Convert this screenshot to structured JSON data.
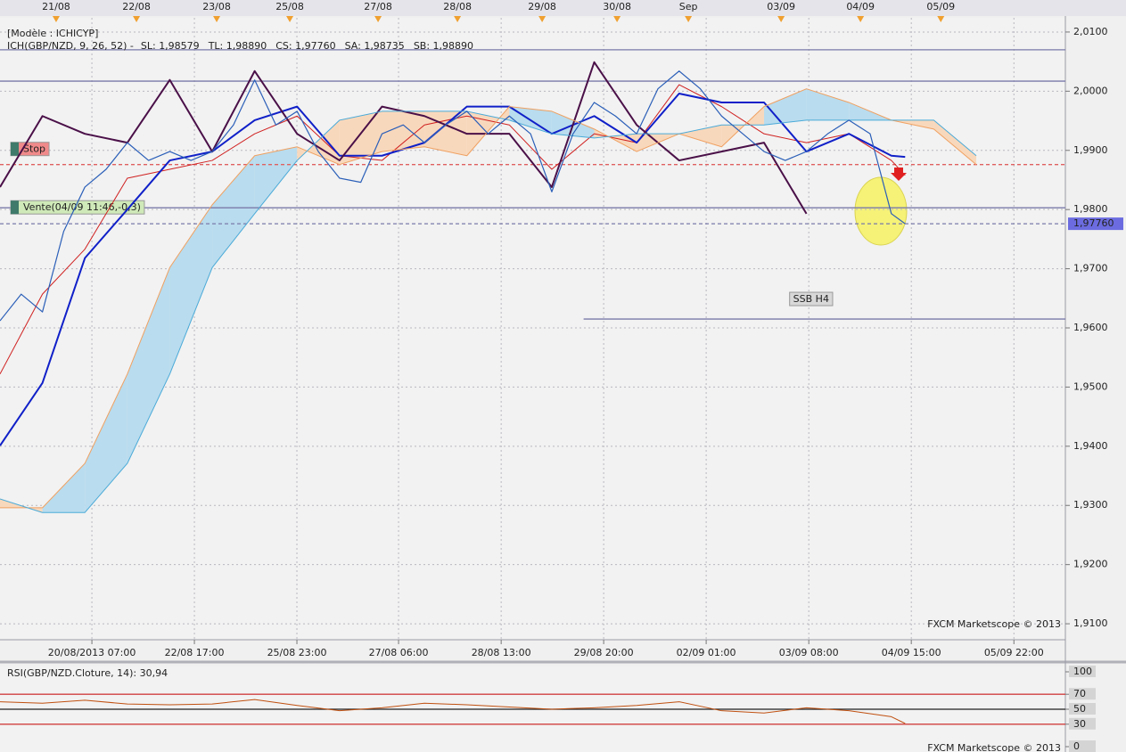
{
  "chart_data": [
    {
      "type": "line",
      "model_label": "[Modèle : ICHICYP]",
      "indicator_label": "ICH(GBP/NZD, 9, 26, 52) -",
      "watermark": "FXCM Marketscope © 2013",
      "xlim": [
        0,
        100.4
      ],
      "ylim": [
        1.9073,
        2.0124
      ],
      "grid": true,
      "yticks": [
        {
          "value": 2.01,
          "label": "2,0100"
        },
        {
          "value": 2.0,
          "label": "2,0000"
        },
        {
          "value": 1.99,
          "label": "1,9900"
        },
        {
          "value": 1.98,
          "label": "1,9800"
        },
        {
          "value": 1.97,
          "label": "1,9700"
        },
        {
          "value": 1.96,
          "label": "1,9600"
        },
        {
          "value": 1.95,
          "label": "1,9500"
        },
        {
          "value": 1.94,
          "label": "1,9400"
        },
        {
          "value": 1.93,
          "label": "1,9300"
        },
        {
          "value": 1.92,
          "label": "1,9200"
        },
        {
          "value": 1.91,
          "label": "1,9100"
        }
      ],
      "xticks_top": [
        {
          "value": 5.29,
          "label": "21/08"
        },
        {
          "value": 12.86,
          "label": "22/08"
        },
        {
          "value": 20.42,
          "label": "23/08"
        },
        {
          "value": 27.31,
          "label": "25/08"
        },
        {
          "value": 35.63,
          "label": "27/08"
        },
        {
          "value": 43.11,
          "label": "28/08"
        },
        {
          "value": 51.09,
          "label": "29/08"
        },
        {
          "value": 58.15,
          "label": "30/08"
        },
        {
          "value": 64.87,
          "label": "Sep"
        },
        {
          "value": 73.61,
          "label": "03/09"
        },
        {
          "value": 81.09,
          "label": "04/09"
        },
        {
          "value": 88.66,
          "label": "05/09"
        }
      ],
      "xticks": [
        {
          "value": 8.66,
          "label": "20/08/2013 07:00"
        },
        {
          "value": 18.32,
          "label": "22/08 17:00"
        },
        {
          "value": 27.98,
          "label": "25/08 23:00"
        },
        {
          "value": 37.56,
          "label": "27/08 06:00"
        },
        {
          "value": 47.23,
          "label": "28/08 13:00"
        },
        {
          "value": 56.89,
          "label": "29/08 20:00"
        },
        {
          "value": 66.55,
          "label": "02/09 01:00"
        },
        {
          "value": 76.22,
          "label": "03/09 08:00"
        },
        {
          "value": 85.88,
          "label": "04/09 15:00"
        },
        {
          "value": 95.55,
          "label": "05/09 22:00"
        }
      ],
      "cloud_colors": {
        "up": "#b9dcee",
        "down": "#f8d8bc"
      },
      "hlines": [
        {
          "value": 2.007,
          "color": "#7a7aaa"
        },
        {
          "value": 2.0017,
          "color": "#7a7aaa"
        },
        {
          "value": 1.9876,
          "color": "#e06060",
          "dash": true,
          "label": "Stop",
          "label_color": "#f08a8a"
        },
        {
          "value": 1.9803,
          "color": "#7a7aaa",
          "label": "Vente(04/09 11:46,-0,3)",
          "label_color": "#cfe9b8"
        },
        {
          "value": 1.9776,
          "color": "#7a7aaa",
          "dash": true
        },
        {
          "value": 1.9615,
          "color": "#7a7aaa",
          "xrange": [
            55,
            100.4
          ],
          "label": "SSB H4",
          "label_color": "#d8d8d8"
        }
      ],
      "last_label": {
        "value": 1.9776,
        "label": "1,97760"
      },
      "series": [
        {
          "name": "SL: 1,98579",
          "color": "#d02020",
          "width": 1,
          "x": [
            0,
            4,
            8,
            12,
            16,
            20,
            24,
            28,
            32,
            36,
            40,
            44,
            48,
            52,
            56,
            60,
            64,
            68,
            72,
            76,
            80,
            84,
            85.3
          ],
          "values": [
            1.9522,
            1.9657,
            1.9733,
            1.9853,
            1.9868,
            1.9883,
            1.9928,
            1.9958,
            1.9891,
            1.9883,
            1.9943,
            1.9958,
            1.9943,
            1.9868,
            1.9928,
            1.9913,
            2.0011,
            1.9974,
            1.9928,
            1.9913,
            1.9928,
            1.9883,
            1.9858
          ]
        },
        {
          "name": "TL: 1,98890",
          "color": "#1020c8",
          "width": 2,
          "x": [
            0,
            4,
            8,
            12,
            16,
            20,
            24,
            28,
            32,
            36,
            40,
            44,
            48,
            52,
            56,
            60,
            64,
            68,
            72,
            76,
            80,
            84,
            85.3
          ],
          "values": [
            1.9401,
            1.9507,
            1.9718,
            1.98,
            1.9883,
            1.9898,
            1.9951,
            1.9974,
            1.9891,
            1.9891,
            1.9913,
            1.9974,
            1.9974,
            1.9928,
            1.9958,
            1.9913,
            1.9996,
            1.9981,
            1.9981,
            1.9898,
            1.9928,
            1.9891,
            1.9889
          ]
        },
        {
          "name": "CS: 1,97760",
          "color": "#4a1048",
          "width": 2,
          "x": [
            0,
            4,
            8,
            12,
            16,
            20,
            24,
            28,
            32,
            36,
            40,
            44,
            48,
            52,
            56,
            60,
            64,
            68,
            72,
            76
          ],
          "values": [
            1.9838,
            1.9958,
            1.9928,
            1.9913,
            2.0019,
            1.9898,
            2.0034,
            1.9928,
            1.9883,
            1.9974,
            1.9958,
            1.9928,
            1.9928,
            1.9838,
            2.0049,
            1.9943,
            1.9883,
            1.9898,
            1.9913,
            1.9793
          ]
        },
        {
          "name": "SA: 1,98735",
          "color": "#f0a060",
          "width": 1,
          "x": [
            0,
            4,
            8,
            12,
            16,
            20,
            24,
            28,
            32,
            36,
            40,
            44,
            48,
            52,
            56,
            60,
            64,
            68,
            72,
            76,
            80,
            84,
            88,
            92
          ],
          "values": [
            1.9296,
            1.9296,
            1.9371,
            1.9522,
            1.9702,
            1.9808,
            1.9891,
            1.9906,
            1.9876,
            1.9898,
            1.9906,
            1.9891,
            1.9974,
            1.9966,
            1.9936,
            1.9898,
            1.9928,
            1.9906,
            1.9974,
            2.0004,
            1.9981,
            1.9951,
            1.9936,
            1.9876
          ]
        },
        {
          "name": "SB: 1,98890",
          "color": "#4aaad8",
          "width": 1,
          "x": [
            0,
            4,
            8,
            12,
            16,
            20,
            24,
            28,
            32,
            36,
            40,
            44,
            48,
            52,
            56,
            60,
            64,
            68,
            72,
            76,
            80,
            84,
            88,
            92
          ],
          "values": [
            1.9311,
            1.9288,
            1.9288,
            1.9371,
            1.9522,
            1.9702,
            1.9793,
            1.9883,
            1.9951,
            1.9966,
            1.9966,
            1.9966,
            1.9951,
            1.9928,
            1.9921,
            1.9928,
            1.9928,
            1.9943,
            1.9943,
            1.9951,
            1.9951,
            1.9951,
            1.9951,
            1.9891
          ]
        },
        {
          "color": "#2b5fb8",
          "width": 1.2,
          "x": [
            0,
            2,
            4,
            6,
            8,
            10,
            12,
            14,
            16,
            18,
            20,
            22,
            24,
            26,
            28,
            30,
            32,
            34,
            36,
            38,
            40,
            42,
            44,
            46,
            48,
            50,
            52,
            54,
            56,
            58,
            60,
            62,
            64,
            66,
            68,
            70,
            72,
            74,
            76,
            78,
            80,
            82,
            84,
            85.3
          ],
          "values": [
            1.9612,
            1.9657,
            1.9627,
            1.9763,
            1.9838,
            1.9868,
            1.9913,
            1.9883,
            1.9898,
            1.9883,
            1.9898,
            1.9943,
            2.0019,
            1.9943,
            1.9966,
            1.9898,
            1.9853,
            1.9846,
            1.9928,
            1.9943,
            1.9913,
            1.9943,
            1.9966,
            1.9928,
            1.9958,
            1.9928,
            1.983,
            1.9928,
            1.9981,
            1.9958,
            1.9928,
            2.0004,
            2.0034,
            2.0004,
            1.9958,
            1.9928,
            1.9898,
            1.9883,
            1.9898,
            1.9928,
            1.9951,
            1.9928,
            1.9793,
            1.9776
          ]
        }
      ]
    },
    {
      "type": "line",
      "title": "RSI(GBP/NZD.Cloture, 14): 30,94",
      "watermark": "FXCM Marketscope © 2013",
      "xlim": [
        0,
        100.4
      ],
      "ylim": [
        0,
        100
      ],
      "yticks": [
        100,
        70,
        50,
        30,
        0
      ],
      "hlines": [
        {
          "value": 70,
          "color": "#d04040"
        },
        {
          "value": 50,
          "color": "#202020"
        },
        {
          "value": 30,
          "color": "#d04040"
        }
      ],
      "series": [
        {
          "color": "#c05010",
          "width": 1,
          "x": [
            0,
            4,
            8,
            12,
            16,
            20,
            24,
            28,
            32,
            36,
            40,
            44,
            48,
            52,
            56,
            60,
            64,
            68,
            72,
            76,
            80,
            84,
            85.3
          ],
          "values": [
            60,
            58,
            62,
            57,
            56,
            57,
            63,
            55,
            48,
            52,
            58,
            56,
            53,
            50,
            52,
            55,
            60,
            48,
            45,
            52,
            48,
            40,
            30.94
          ]
        }
      ]
    }
  ]
}
